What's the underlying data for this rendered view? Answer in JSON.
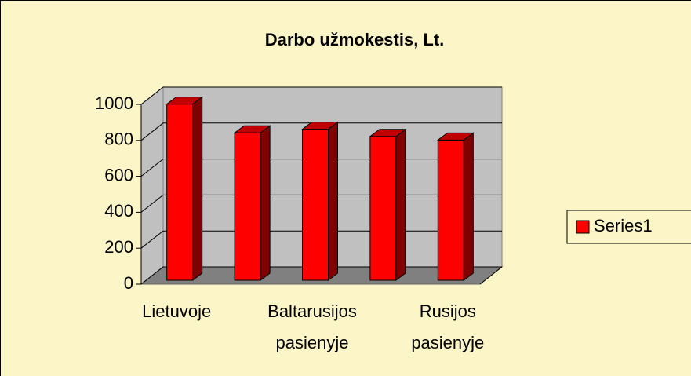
{
  "chart_data": {
    "type": "bar3d",
    "title": "Darbo užmokestis, Lt.",
    "categories": [
      "Lietuvoje",
      null,
      "Baltarusijos pasienyje",
      null,
      "Rusijos pasienyje"
    ],
    "series": [
      {
        "name": "Series1",
        "color": "#ff0000",
        "values": [
          980,
          820,
          840,
          800,
          780
        ]
      }
    ],
    "ylim": [
      0,
      1000
    ],
    "yticks": [
      0,
      200,
      400,
      600,
      800,
      1000
    ],
    "grid": true,
    "legend": "right"
  }
}
